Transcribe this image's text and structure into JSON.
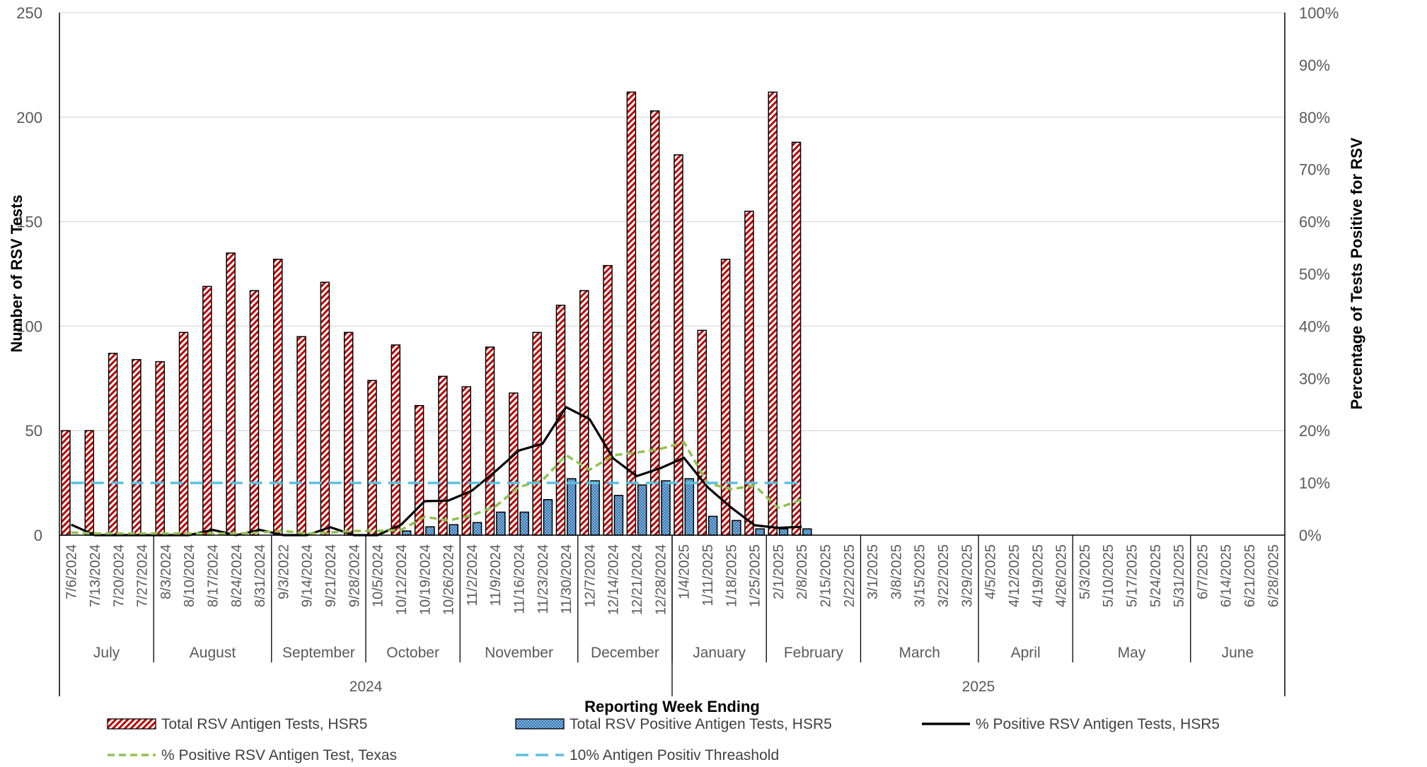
{
  "chart_data": {
    "type": "bar",
    "xlabel": "Reporting Week Ending",
    "ylabel_left": "Number of RSV Tests",
    "ylabel_right": "Percentage of Tests Positive for RSV",
    "ylim_left": [
      0,
      250
    ],
    "ylim_right": [
      0,
      100
    ],
    "yticks_left": [
      "0",
      "50",
      "100",
      "150",
      "200",
      "250"
    ],
    "yticks_right": [
      "0%",
      "10%",
      "20%",
      "30%",
      "40%",
      "50%",
      "60%",
      "70%",
      "80%",
      "90%",
      "100%"
    ],
    "grid": true,
    "legend_position": "bottom",
    "categories": [
      "7/6/2024",
      "7/13/2024",
      "7/20/2024",
      "7/27/2024",
      "8/3/2024",
      "8/10/2024",
      "8/17/2024",
      "8/24/2024",
      "8/31/2024",
      "9/3/2022",
      "9/14/2024",
      "9/21/2024",
      "9/28/2024",
      "10/5/2024",
      "10/12/2024",
      "10/19/2024",
      "10/26/2024",
      "11/2/2024",
      "11/9/2024",
      "11/16/2024",
      "11/23/2024",
      "11/30/2024",
      "12/7/2024",
      "12/14/2024",
      "12/21/2024",
      "12/28/2024",
      "1/4/2025",
      "1/11/2025",
      "1/18/2025",
      "1/25/2025",
      "2/1/2025",
      "2/8/2025",
      "2/15/2025",
      "2/22/2025",
      "3/1/2025",
      "3/8/2025",
      "3/15/2025",
      "3/22/2025",
      "3/29/2025",
      "4/5/2025",
      "4/12/2025",
      "4/19/2025",
      "4/26/2025",
      "5/3/2025",
      "5/10/2025",
      "5/17/2025",
      "5/24/2025",
      "5/31/2025",
      "6/7/2025",
      "6/14/2025",
      "6/21/2025",
      "6/28/2025"
    ],
    "months": [
      {
        "label": "July",
        "start": 0,
        "count": 4
      },
      {
        "label": "August",
        "start": 4,
        "count": 5
      },
      {
        "label": "September",
        "start": 9,
        "count": 4
      },
      {
        "label": "October",
        "start": 13,
        "count": 4
      },
      {
        "label": "November",
        "start": 17,
        "count": 5
      },
      {
        "label": "December",
        "start": 22,
        "count": 4
      },
      {
        "label": "January",
        "start": 26,
        "count": 4
      },
      {
        "label": "February",
        "start": 30,
        "count": 4
      },
      {
        "label": "March",
        "start": 34,
        "count": 5
      },
      {
        "label": "April",
        "start": 39,
        "count": 4
      },
      {
        "label": "May",
        "start": 43,
        "count": 5
      },
      {
        "label": "June",
        "start": 48,
        "count": 4
      }
    ],
    "years": [
      {
        "label": "2024",
        "start": 0,
        "count": 26
      },
      {
        "label": "2025",
        "start": 26,
        "count": 26
      }
    ],
    "series": [
      {
        "name": "Total RSV Antigen Tests, HSR5",
        "kind": "bar",
        "axis": "left",
        "color": "#C00000",
        "values": [
          50,
          50,
          87,
          84,
          83,
          97,
          119,
          135,
          117,
          132,
          95,
          121,
          97,
          74,
          91,
          62,
          76,
          71,
          90,
          68,
          97,
          110,
          117,
          129,
          212,
          203,
          182,
          98,
          132,
          155,
          212,
          188,
          null,
          null,
          null,
          null,
          null,
          null,
          null,
          null,
          null,
          null,
          null,
          null,
          null,
          null,
          null,
          null,
          null,
          null,
          null,
          null
        ]
      },
      {
        "name": "Total RSV Positive Antigen Tests, HSR5",
        "kind": "bar",
        "axis": "left",
        "color": "#2E75B6",
        "values": [
          0,
          0,
          0,
          0,
          0,
          0,
          0,
          0,
          0,
          0,
          0,
          0,
          0,
          0,
          2,
          4,
          5,
          6,
          11,
          11,
          17,
          27,
          26,
          19,
          24,
          26,
          27,
          9,
          7,
          3,
          3,
          3,
          null,
          null,
          null,
          null,
          null,
          null,
          null,
          null,
          null,
          null,
          null,
          null,
          null,
          null,
          null,
          null,
          null,
          null,
          null,
          null
        ]
      },
      {
        "name": "% Positive RSV Antigen Tests, HSR5",
        "kind": "line",
        "axis": "right",
        "color": "#000000",
        "values": [
          2,
          0,
          0,
          0,
          0,
          0,
          1,
          0,
          1,
          0,
          0,
          1.5,
          0,
          0,
          2,
          6.5,
          6.6,
          8.5,
          12.2,
          16.2,
          17.5,
          24.5,
          22.2,
          14.7,
          11.3,
          12.8,
          14.8,
          9.2,
          5.3,
          1.9,
          1.4,
          1.6,
          null,
          null,
          null,
          null,
          null,
          null,
          null,
          null,
          null,
          null,
          null,
          null,
          null,
          null,
          null,
          null,
          null,
          null,
          null,
          null
        ]
      },
      {
        "name": "% Positive RSV Antigen Test, Texas",
        "kind": "line",
        "dash": "dashed",
        "axis": "right",
        "color": "#92C050",
        "values": [
          0.5,
          0.3,
          0.3,
          0.3,
          0.3,
          0.3,
          0.3,
          0.3,
          0.5,
          0.8,
          0.3,
          0.5,
          0.8,
          0.8,
          1,
          3.5,
          2.8,
          3.8,
          5.5,
          9.2,
          10.5,
          15.3,
          12.5,
          15.3,
          15.8,
          16.5,
          17.8,
          10,
          8.8,
          9.5,
          5.2,
          6.8,
          null,
          null,
          null,
          null,
          null,
          null,
          null,
          null,
          null,
          null,
          null,
          null,
          null,
          null,
          null,
          null,
          null,
          null,
          null,
          null
        ]
      },
      {
        "name": "10% Antigen Positiv Threashold",
        "kind": "line",
        "dash": "long-dash",
        "axis": "right",
        "color": "#5BC0DE",
        "values": [
          10,
          10,
          10,
          10,
          10,
          10,
          10,
          10,
          10,
          10,
          10,
          10,
          10,
          10,
          10,
          10,
          10,
          10,
          10,
          10,
          10,
          10,
          10,
          10,
          10,
          10,
          10,
          10,
          10,
          10,
          10,
          10,
          null,
          null,
          null,
          null,
          null,
          null,
          null,
          null,
          null,
          null,
          null,
          null,
          null,
          null,
          null,
          null,
          null,
          null,
          null,
          null
        ]
      }
    ]
  }
}
